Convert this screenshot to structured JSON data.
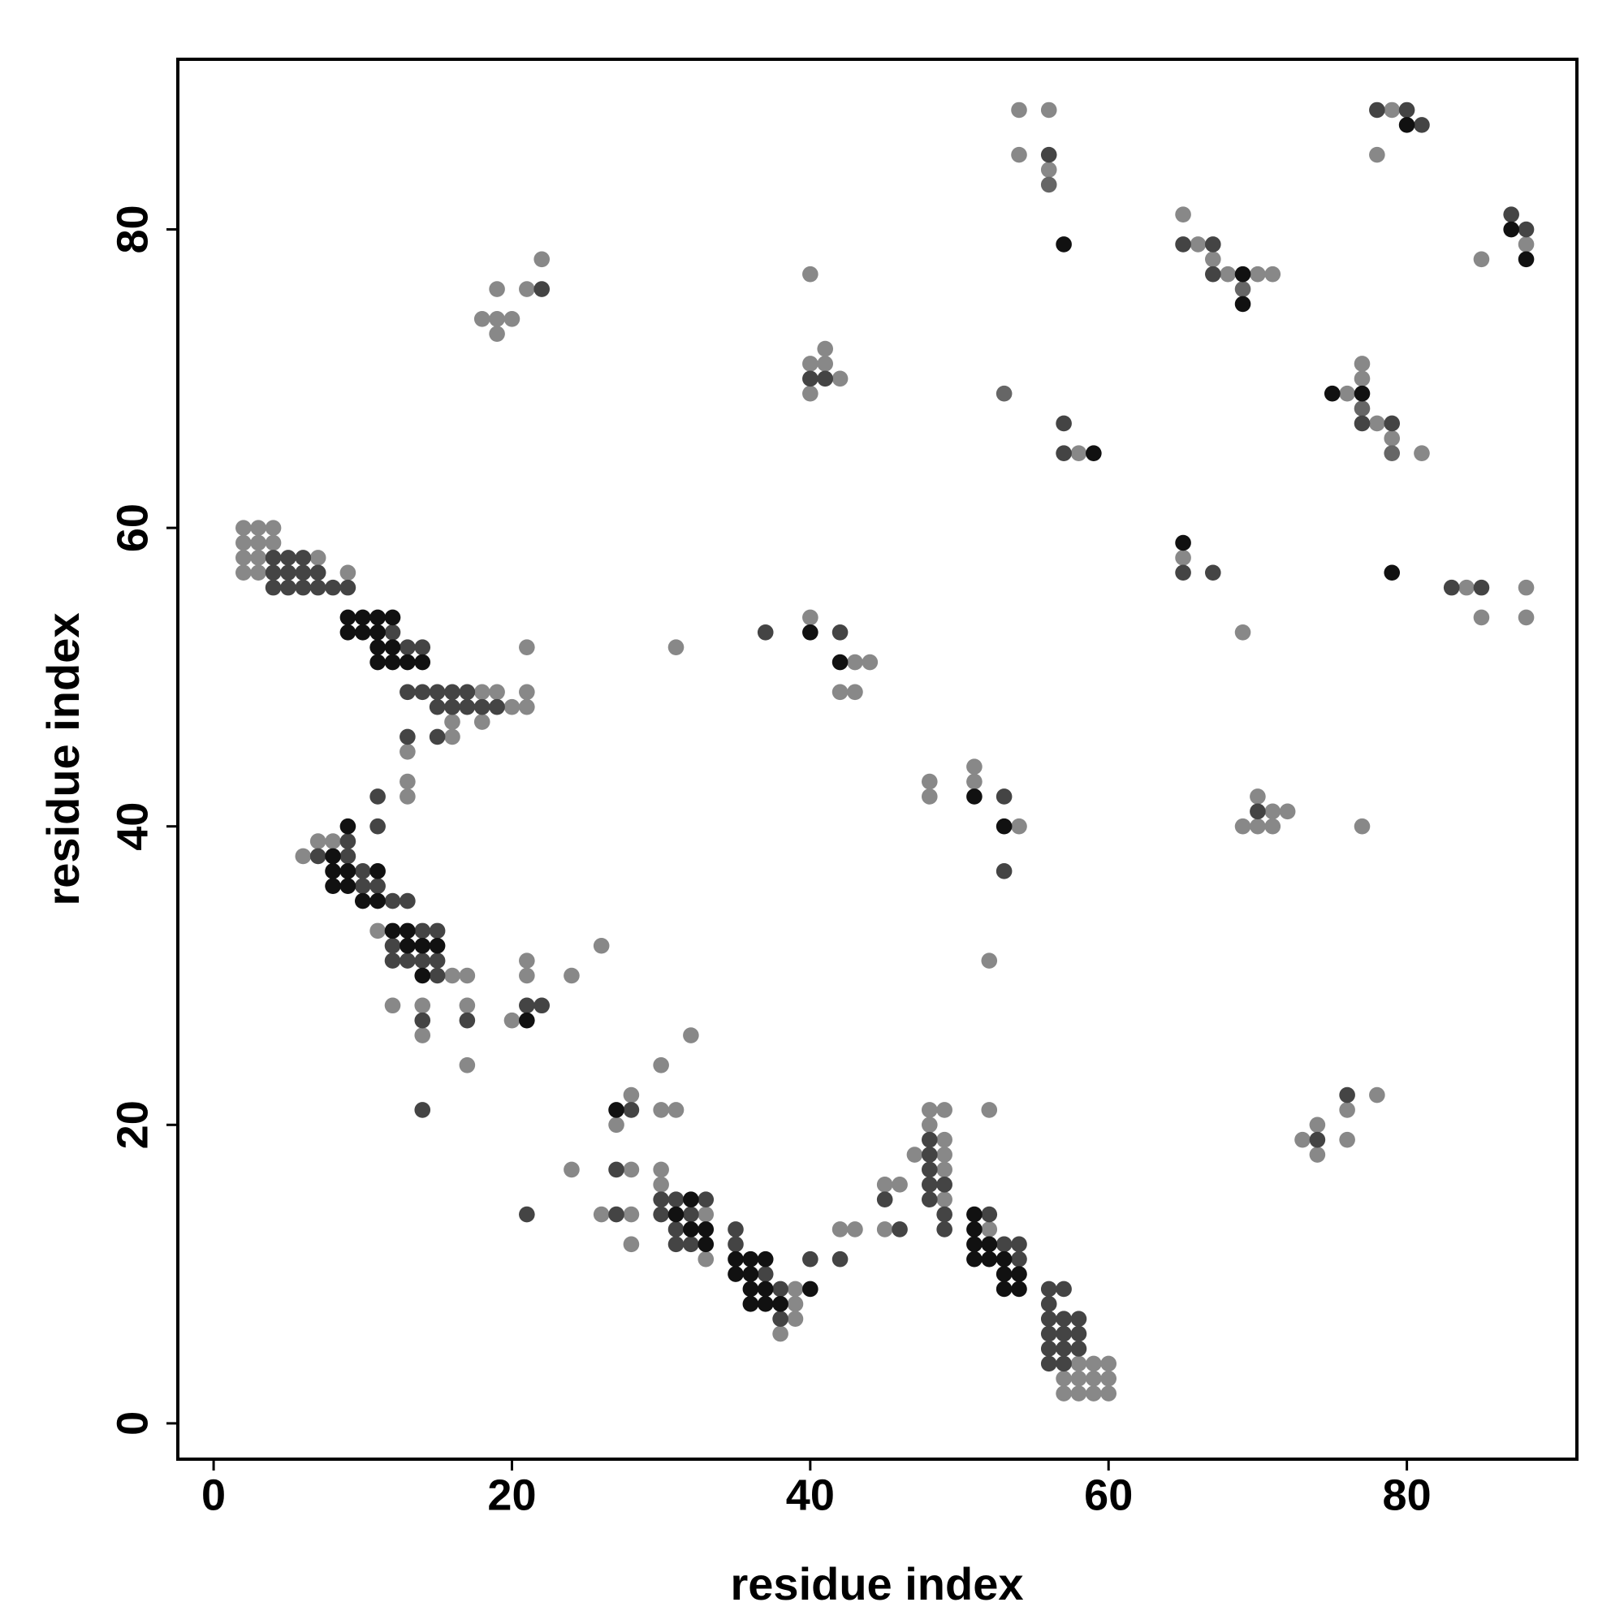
{
  "chart_data": {
    "type": "scatter",
    "xlabel": "residue index",
    "ylabel": "residue index",
    "xlim": [
      -2.4,
      91.4
    ],
    "ylim": [
      -2.4,
      91.4
    ],
    "xticks": [
      0,
      20,
      40,
      60,
      80
    ],
    "yticks": [
      0,
      20,
      40,
      60,
      80
    ],
    "series": [
      {
        "color": "#888888",
        "x": [
          2,
          3,
          4,
          2,
          3,
          4,
          2,
          3,
          7,
          2,
          3,
          9,
          18,
          19,
          21,
          20,
          21,
          16,
          18,
          16,
          13,
          13,
          13,
          7,
          8,
          6,
          11,
          16,
          17,
          12,
          14,
          17,
          14,
          17,
          21,
          21,
          24,
          26,
          20,
          21,
          22,
          19,
          21,
          18,
          19,
          20,
          19,
          40,
          41,
          40,
          41,
          42,
          40,
          40,
          43,
          44,
          42,
          43,
          31,
          28,
          30,
          31,
          27,
          24,
          28,
          30,
          30,
          26,
          28,
          33,
          28,
          33,
          32,
          30,
          39,
          39,
          39,
          38,
          42,
          43,
          45,
          48,
          49,
          48,
          49,
          47,
          49,
          49,
          45,
          46,
          49,
          52,
          52,
          58,
          59,
          60,
          57,
          58,
          59,
          60,
          57,
          58,
          59,
          60,
          51,
          48,
          51,
          48,
          54,
          52,
          54,
          56,
          54,
          56,
          58,
          65,
          66,
          67,
          68,
          70,
          71,
          79,
          78,
          88,
          85,
          77,
          77,
          76,
          78,
          79,
          81,
          65,
          69,
          84,
          88,
          85,
          88,
          70,
          71,
          72,
          69,
          70,
          71,
          77,
          78,
          76,
          74,
          73,
          76,
          74
        ],
        "values": [
          60,
          60,
          60,
          59,
          59,
          59,
          58,
          58,
          58,
          57,
          57,
          57,
          49,
          49,
          49,
          48,
          48,
          47,
          47,
          46,
          45,
          43,
          42,
          39,
          39,
          38,
          33,
          30,
          30,
          28,
          28,
          28,
          26,
          24,
          31,
          30,
          30,
          32,
          27,
          52,
          78,
          76,
          76,
          74,
          74,
          74,
          73,
          77,
          72,
          71,
          71,
          70,
          69,
          54,
          51,
          51,
          49,
          49,
          52,
          22,
          21,
          21,
          20,
          17,
          17,
          17,
          16,
          14,
          14,
          14,
          12,
          11,
          26,
          24,
          9,
          8,
          7,
          6,
          13,
          13,
          13,
          21,
          21,
          20,
          19,
          18,
          18,
          17,
          16,
          16,
          15,
          13,
          21,
          4,
          4,
          4,
          3,
          3,
          3,
          3,
          2,
          2,
          2,
          2,
          44,
          43,
          43,
          42,
          40,
          31,
          88,
          88,
          85,
          84,
          65,
          81,
          79,
          78,
          77,
          77,
          77,
          88,
          85,
          79,
          78,
          71,
          70,
          69,
          67,
          66,
          65,
          58,
          53,
          56,
          56,
          54,
          54,
          42,
          41,
          41,
          40,
          40,
          40,
          40,
          22,
          21,
          20,
          19,
          19,
          18
        ]
      },
      {
        "color": "#666666",
        "x": [
          56,
          53,
          69,
          77,
          79
        ],
        "values": [
          83,
          69,
          76,
          68,
          65
        ]
      },
      {
        "color": "#444444",
        "x": [
          4,
          5,
          6,
          4,
          5,
          6,
          7,
          4,
          5,
          6,
          7,
          8,
          9,
          12,
          13,
          14,
          13,
          14,
          15,
          16,
          17,
          15,
          16,
          17,
          18,
          19,
          13,
          15,
          11,
          11,
          9,
          7,
          9,
          10,
          10,
          11,
          12,
          13,
          14,
          15,
          12,
          12,
          13,
          14,
          15,
          15,
          14,
          17,
          14,
          21,
          22,
          22,
          40,
          41,
          37,
          42,
          28,
          27,
          30,
          31,
          33,
          27,
          30,
          32,
          31,
          31,
          32,
          21,
          35,
          35,
          37,
          38,
          38,
          40,
          42,
          46,
          48,
          48,
          48,
          48,
          49,
          45,
          48,
          49,
          52,
          49,
          53,
          54,
          54,
          56,
          57,
          56,
          56,
          57,
          58,
          56,
          57,
          58,
          56,
          57,
          58,
          56,
          57,
          53,
          53,
          56,
          57,
          57,
          65,
          67,
          67,
          78,
          80,
          81,
          87,
          88,
          77,
          79,
          65,
          67,
          83,
          85,
          70,
          76,
          74
        ],
        "values": [
          58,
          58,
          58,
          57,
          57,
          57,
          57,
          56,
          56,
          56,
          56,
          56,
          56,
          53,
          52,
          52,
          49,
          49,
          49,
          49,
          49,
          48,
          48,
          48,
          48,
          48,
          46,
          46,
          42,
          40,
          39,
          38,
          38,
          37,
          36,
          36,
          35,
          35,
          33,
          33,
          32,
          31,
          31,
          31,
          31,
          30,
          27,
          27,
          21,
          28,
          28,
          76,
          70,
          70,
          53,
          53,
          21,
          17,
          15,
          15,
          15,
          14,
          14,
          14,
          13,
          12,
          12,
          14,
          13,
          12,
          10,
          9,
          7,
          11,
          11,
          13,
          19,
          18,
          17,
          16,
          16,
          15,
          15,
          14,
          14,
          13,
          12,
          12,
          11,
          9,
          9,
          8,
          7,
          7,
          7,
          6,
          6,
          6,
          5,
          5,
          5,
          4,
          4,
          42,
          37,
          85,
          67,
          65,
          79,
          79,
          77,
          88,
          88,
          87,
          81,
          80,
          67,
          67,
          57,
          57,
          56,
          56,
          41,
          22,
          19
        ]
      },
      {
        "color": "#111111",
        "x": [
          9,
          10,
          11,
          12,
          9,
          10,
          11,
          11,
          12,
          11,
          12,
          13,
          14,
          9,
          8,
          8,
          9,
          11,
          8,
          9,
          10,
          11,
          12,
          13,
          13,
          14,
          15,
          14,
          21,
          40,
          42,
          27,
          32,
          31,
          32,
          33,
          33,
          35,
          36,
          37,
          35,
          36,
          36,
          37,
          36,
          37,
          38,
          40,
          51,
          51,
          51,
          52,
          51,
          52,
          53,
          53,
          54,
          53,
          54,
          51,
          53,
          57,
          59,
          69,
          69,
          80,
          87,
          88,
          75,
          77,
          65,
          79
        ],
        "values": [
          54,
          54,
          54,
          54,
          53,
          53,
          53,
          52,
          52,
          51,
          51,
          51,
          51,
          40,
          38,
          37,
          37,
          37,
          36,
          36,
          35,
          35,
          33,
          33,
          32,
          32,
          32,
          30,
          27,
          53,
          51,
          21,
          15,
          14,
          13,
          13,
          12,
          11,
          11,
          11,
          10,
          10,
          9,
          9,
          8,
          8,
          8,
          9,
          14,
          13,
          12,
          12,
          11,
          11,
          11,
          10,
          10,
          9,
          9,
          42,
          40,
          79,
          65,
          77,
          75,
          87,
          80,
          78,
          69,
          69,
          59,
          57
        ]
      }
    ]
  }
}
